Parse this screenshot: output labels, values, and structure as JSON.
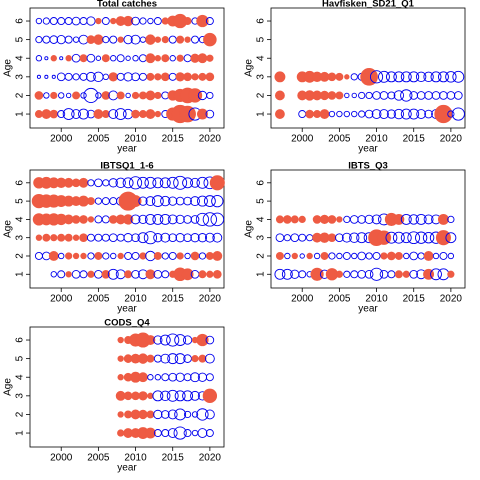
{
  "chart_data": [
    {
      "type": "bubble",
      "title": "Total catches",
      "x_label": "year",
      "y_label": "Age",
      "xlim": [
        1995.8,
        2021.9
      ],
      "ylim": [
        0.25,
        6.7
      ],
      "xticks": [
        2000,
        2005,
        2010,
        2015,
        2020
      ],
      "yticks": [
        1,
        2,
        3,
        4,
        5,
        6
      ],
      "positive_color": "#ee5b43",
      "negative_color": "#0000ee",
      "x": [
        1997,
        1998,
        1999,
        2000,
        2001,
        2002,
        2003,
        2004,
        2005,
        2006,
        2007,
        2008,
        2009,
        2010,
        2011,
        2012,
        2013,
        2014,
        2015,
        2016,
        2017,
        2018,
        2019,
        2020
      ],
      "values": [
        [
          0.5,
          0.8,
          0.6,
          -0.5,
          -1.2,
          -0.8,
          -1.0,
          -0.6,
          0.8,
          0.5,
          -0.8,
          -1.2,
          -0.9,
          0.6,
          0.5,
          0.8,
          0.3,
          -0.5,
          1.5,
          3.0,
          2.5,
          -1.5,
          1.0,
          -0.6
        ],
        [
          0.6,
          -0.3,
          0.4,
          -0.3,
          -0.2,
          0.5,
          -0.3,
          -2.0,
          -0.3,
          0.6,
          -0.8,
          0.5,
          -0.2,
          0.4,
          0.5,
          0.8,
          0.4,
          -0.5,
          0.9,
          1.5,
          2.2,
          1.8,
          -0.7,
          -0.4
        ],
        [
          -0.1,
          -0.1,
          -0.1,
          -0.6,
          -0.5,
          -0.4,
          -0.5,
          -0.8,
          -0.9,
          -0.3,
          0.7,
          -0.5,
          -0.7,
          -0.6,
          -0.5,
          0.5,
          0.4,
          0.6,
          -0.5,
          0.7,
          0.6,
          0.4,
          0.5,
          0.6
        ],
        [
          -0.3,
          -0.1,
          0.3,
          -0.1,
          0.3,
          -0.6,
          0.5,
          -0.6,
          -0.2,
          0.5,
          -0.3,
          -0.5,
          -0.2,
          -0.3,
          -0.5,
          0.8,
          0.3,
          0.5,
          -0.3,
          0.4,
          -0.5,
          0.7,
          0.8,
          0.4
        ],
        [
          -0.4,
          -0.5,
          -0.6,
          -0.7,
          -0.5,
          -0.3,
          -0.8,
          0.6,
          0.9,
          -0.4,
          -0.5,
          0.3,
          -0.7,
          -0.8,
          -0.3,
          0.9,
          0.3,
          0.4,
          -0.5,
          0.5,
          0.3,
          -0.5,
          -0.4,
          1.6
        ],
        [
          -0.3,
          -0.4,
          -0.5,
          -0.5,
          -0.5,
          -0.6,
          -0.5,
          -0.7,
          0.3,
          -0.5,
          0.3,
          0.8,
          0.9,
          -0.6,
          -0.4,
          -0.3,
          -0.5,
          0.4,
          1.0,
          1.8,
          0.5,
          -0.4,
          1.3,
          -0.5
        ]
      ]
    },
    {
      "type": "bubble",
      "title": "Havfisken_SD21_Q1",
      "x_label": "year",
      "y_label": "Age",
      "xlim": [
        1995.8,
        2021.9
      ],
      "ylim": [
        0.25,
        6.7
      ],
      "xticks": [
        2000,
        2005,
        2010,
        2015,
        2020
      ],
      "yticks": [
        1,
        2,
        3,
        4,
        5,
        6
      ],
      "positive_color": "#ee5b43",
      "negative_color": "#0000ee",
      "x": [
        1997,
        1998,
        1999,
        2000,
        2001,
        2002,
        2003,
        2004,
        2005,
        2006,
        2007,
        2008,
        2009,
        2010,
        2011,
        2012,
        2013,
        2014,
        2015,
        2016,
        2017,
        2018,
        2019,
        2020,
        2021
      ],
      "values": [
        [
          0.8,
          null,
          null,
          -0.5,
          0.6,
          0.5,
          0.8,
          -0.3,
          -0.3,
          -0.3,
          -0.3,
          -0.4,
          -0.6,
          -0.8,
          -0.8,
          -0.7,
          -0.9,
          -1.0,
          -1.0,
          -0.8,
          -0.6,
          -0.8,
          3.0,
          -0.4,
          -1.5
        ],
        [
          0.8,
          null,
          null,
          0.8,
          0.9,
          0.8,
          0.7,
          0.6,
          0.5,
          -0.2,
          -0.2,
          -0.4,
          -0.4,
          -0.6,
          -0.6,
          -0.5,
          -0.9,
          -1.3,
          -0.6,
          -0.6,
          -0.6,
          -0.6,
          -0.6,
          -0.6,
          -0.6
        ],
        [
          1.0,
          null,
          null,
          1.0,
          1.2,
          0.9,
          0.8,
          0.6,
          0.5,
          0.2,
          -0.4,
          -0.5,
          2.8,
          -1.5,
          -1.2,
          -1.0,
          -1.0,
          -1.0,
          -1.0,
          -0.9,
          -0.9,
          -1.0,
          -1.0,
          -1.1,
          -1.2
        ]
      ]
    },
    {
      "type": "bubble",
      "title": "IBTSQ1_1-6",
      "x_label": "year",
      "y_label": "Age",
      "xlim": [
        1995.8,
        2021.9
      ],
      "ylim": [
        0.25,
        6.7
      ],
      "xticks": [
        2000,
        2005,
        2010,
        2015,
        2020
      ],
      "yticks": [
        1,
        2,
        3,
        4,
        5,
        6
      ],
      "positive_color": "#ee5b43",
      "negative_color": "#0000ee",
      "x": [
        1997,
        1998,
        1999,
        2000,
        2001,
        2002,
        2003,
        2004,
        2005,
        2006,
        2007,
        2008,
        2009,
        2010,
        2011,
        2012,
        2013,
        2014,
        2015,
        2016,
        2017,
        2018,
        2019,
        2020,
        2021
      ],
      "values": [
        [
          null,
          null,
          -0.3,
          -0.5,
          0.3,
          -0.6,
          -0.5,
          0.4,
          -0.6,
          0.6,
          -1.0,
          -0.8,
          0.5,
          -0.6,
          -0.8,
          0.8,
          -0.6,
          -0.5,
          0.4,
          1.6,
          1.2,
          -0.6,
          0.5,
          0.4,
          0.6
        ],
        [
          -0.5,
          -0.6,
          0.8,
          -0.3,
          0.4,
          0.3,
          0.3,
          -0.4,
          0.5,
          -0.4,
          -0.3,
          0.3,
          -0.5,
          -0.5,
          0.4,
          -0.9,
          0.5,
          -0.4,
          -0.5,
          0.4,
          -0.3,
          0.6,
          -0.4,
          0.5,
          0.8
        ],
        [
          0.3,
          0.5,
          0.4,
          0.5,
          0.5,
          0.3,
          0.6,
          -0.5,
          -0.5,
          -0.5,
          -0.6,
          -0.5,
          -0.7,
          -0.6,
          -1.0,
          -1.5,
          -0.7,
          -0.8,
          -0.6,
          -0.7,
          -0.6,
          -0.7,
          -0.7,
          -0.8,
          -0.8
        ],
        [
          1.3,
          1.2,
          1.3,
          1.1,
          0.8,
          0.6,
          0.6,
          0.3,
          -0.5,
          -0.5,
          0.6,
          0.8,
          0.9,
          -0.8,
          -0.7,
          -1.0,
          -1.0,
          -1.0,
          -0.8,
          -0.7,
          -0.6,
          -0.6,
          -1.5,
          -1.8,
          -1.6
        ],
        [
          1.8,
          1.6,
          1.5,
          1.2,
          1.0,
          0.8,
          1.0,
          0.5,
          -0.4,
          -0.5,
          -0.5,
          -0.7,
          3.3,
          1.2,
          -0.7,
          -0.8,
          -1.2,
          -0.9,
          -0.7,
          -0.6,
          -0.6,
          -0.8,
          -1.0,
          -1.2,
          -1.3
        ],
        [
          1.1,
          1.2,
          1.0,
          0.9,
          0.8,
          0.6,
          0.8,
          -0.4,
          -0.6,
          -0.4,
          -0.7,
          -0.9,
          -1.0,
          -1.5,
          -1.2,
          -1.2,
          -1.0,
          -1.0,
          -1.2,
          -1.7,
          -1.0,
          -0.8,
          -1.2,
          -1.4,
          2.0
        ]
      ]
    },
    {
      "type": "bubble",
      "title": "IBTS_Q3",
      "x_label": "year",
      "y_label": "Age",
      "xlim": [
        1995.8,
        2021.9
      ],
      "ylim": [
        0.25,
        6.7
      ],
      "xticks": [
        2000,
        2005,
        2010,
        2015,
        2020
      ],
      "yticks": [
        1,
        2,
        3,
        4,
        5,
        6
      ],
      "positive_color": "#ee5b43",
      "negative_color": "#0000ee",
      "x": [
        1997,
        1998,
        1999,
        2000,
        2001,
        2002,
        2003,
        2004,
        2005,
        2006,
        2007,
        2008,
        2009,
        2010,
        2011,
        2012,
        2013,
        2014,
        2015,
        2016,
        2017,
        2018,
        2019,
        2020
      ],
      "values": [
        [
          -1.0,
          -1.0,
          -0.7,
          -0.5,
          -0.3,
          1.5,
          -0.7,
          1.3,
          0.4,
          -0.4,
          -0.5,
          -0.6,
          -0.6,
          -1.5,
          -0.6,
          -0.5,
          0.5,
          0.4,
          -0.6,
          -0.8,
          1.0,
          -1.2,
          -1.2,
          0.4
        ],
        [
          0.5,
          -0.3,
          0.3,
          -0.2,
          0.3,
          -0.3,
          0.5,
          -0.4,
          -0.3,
          -0.5,
          -0.3,
          -0.6,
          -0.4,
          -0.5,
          0.4,
          0.6,
          0.5,
          -0.3,
          -0.6,
          -0.4,
          0.8,
          -0.3,
          -0.5,
          -0.3
        ],
        [
          -0.6,
          -0.4,
          -0.6,
          -0.5,
          -0.4,
          0.8,
          0.9,
          0.6,
          -0.6,
          -0.8,
          -0.9,
          -1.0,
          -1.0,
          2.5,
          1.8,
          -1.2,
          -1.2,
          -1.0,
          -1.4,
          -1.3,
          -1.1,
          -1.3,
          2.0,
          -1.0
        ],
        [
          0.5,
          0.6,
          0.5,
          0.4,
          null,
          0.6,
          0.7,
          0.6,
          0.3,
          -0.4,
          -0.6,
          -0.6,
          -0.7,
          -0.8,
          -1.2,
          1.5,
          1.0,
          -1.0,
          -0.9,
          -1.0,
          -0.8,
          -0.8,
          1.0,
          -0.4
        ]
      ]
    },
    {
      "type": "bubble",
      "title": "CODS_Q4",
      "x_label": "year",
      "y_label": "Age",
      "xlim": [
        1995.8,
        2021.9
      ],
      "ylim": [
        0.25,
        6.7
      ],
      "xticks": [
        2000,
        2005,
        2010,
        2015,
        2020
      ],
      "yticks": [
        1,
        2,
        3,
        4,
        5,
        6
      ],
      "positive_color": "#ee5b43",
      "negative_color": "#0000ee",
      "x": [
        2008,
        2009,
        2010,
        2011,
        2012,
        2013,
        2014,
        2015,
        2016,
        2017,
        2018,
        2019,
        2020
      ],
      "values": [
        [
          0.4,
          0.8,
          0.8,
          1.2,
          1.0,
          -0.5,
          -0.5,
          -0.8,
          -1.5,
          -0.5,
          -0.3,
          -0.8,
          -0.5
        ],
        [
          0.3,
          0.5,
          0.8,
          0.7,
          0.5,
          -0.7,
          -0.6,
          -0.8,
          -1.2,
          -0.4,
          -0.3,
          -1.3,
          -0.8
        ],
        [
          0.8,
          0.6,
          0.6,
          0.7,
          0.3,
          -1.0,
          -0.9,
          -1.2,
          -1.0,
          -1.0,
          -0.8,
          -0.7,
          1.8
        ],
        [
          0.3,
          0.6,
          1.0,
          0.8,
          -0.3,
          -0.3,
          -0.5,
          -0.6,
          -0.7,
          -0.5,
          -0.8,
          -0.7,
          -0.5
        ],
        [
          0.3,
          0.6,
          0.8,
          0.9,
          0.5,
          -0.5,
          -0.8,
          -1.0,
          -1.0,
          -0.6,
          0.4,
          0.5,
          -0.8
        ],
        [
          0.3,
          0.5,
          1.5,
          2.0,
          0.8,
          -0.7,
          -1.0,
          -1.5,
          -1.2,
          -0.7,
          0.3,
          1.3,
          -0.6
        ]
      ]
    }
  ]
}
